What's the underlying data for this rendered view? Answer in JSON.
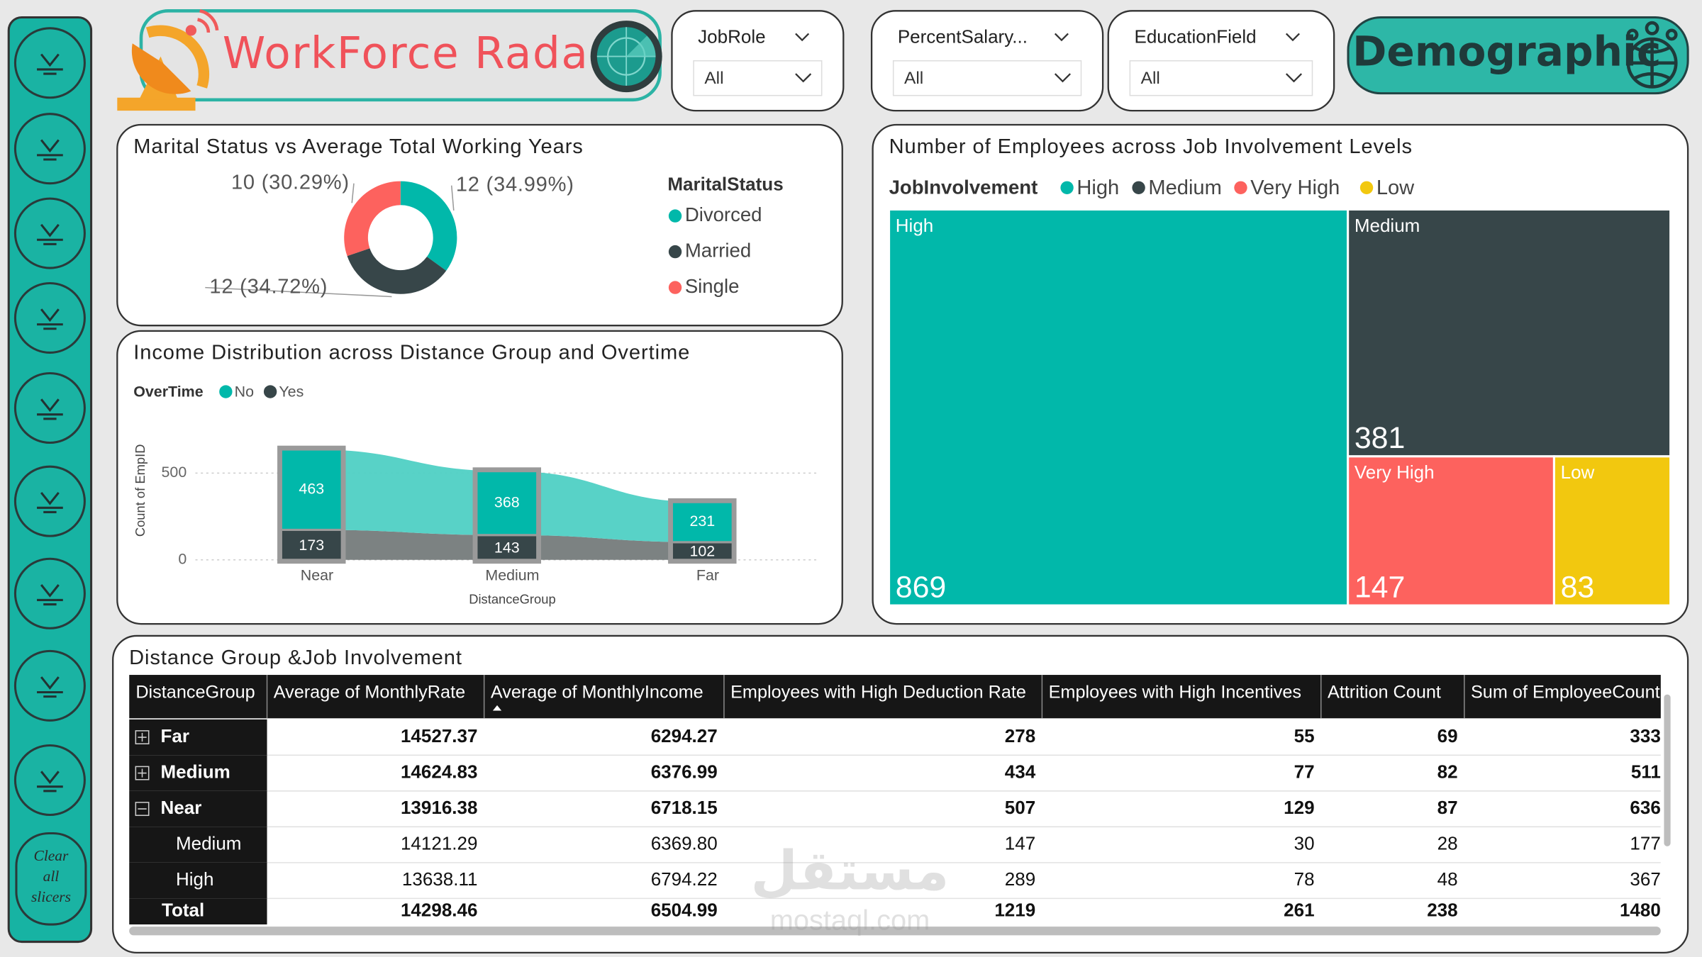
{
  "header": {
    "title": "WorkForce Radar",
    "page_title": "Demographic"
  },
  "slicers": [
    {
      "label": "JobRole",
      "value": "All"
    },
    {
      "label": "PercentSalary...",
      "value": "All"
    },
    {
      "label": "EducationField",
      "value": "All"
    }
  ],
  "sidebar": {
    "clear_button": "Clear all slicers"
  },
  "chart_data": [
    {
      "type": "donut",
      "title": "Marital Status vs Average Total Working Years",
      "legend_title": "MaritalStatus",
      "categories": [
        "Divorced",
        "Married",
        "Single"
      ],
      "values": [
        12,
        11.91,
        10.39
      ],
      "value_labels": [
        "12 (34.99%)",
        "12 (34.72%)",
        "10 (30.29%)"
      ],
      "colors": [
        "#01B8AA",
        "#374649",
        "#FD625E"
      ],
      "legend": "right"
    },
    {
      "type": "ribbon",
      "title": "Income Distribution across Distance Group and Overtime",
      "legend_title": "OverTime",
      "x_label": "DistanceGroup",
      "y_label": "Count of EmpID",
      "categories": [
        "Near",
        "Medium",
        "Far"
      ],
      "series": [
        {
          "name": "No",
          "color": "#01B8AA",
          "values": [
            463,
            368,
            231
          ]
        },
        {
          "name": "Yes",
          "color": "#374649",
          "values": [
            173,
            143,
            102
          ]
        }
      ],
      "ylim": [
        0,
        700
      ],
      "yticks": [
        0,
        500
      ],
      "grid": true,
      "legend": "top-left"
    },
    {
      "type": "treemap",
      "title": "Number of Employees across Job Involvement Levels",
      "legend_title": "JobInvolvement",
      "categories": [
        "High",
        "Medium",
        "Very High",
        "Low"
      ],
      "values": [
        869,
        381,
        147,
        83
      ],
      "colors": [
        "#01B8AA",
        "#374649",
        "#FD625E",
        "#F2C80F"
      ],
      "legend": "top-left"
    }
  ],
  "table": {
    "title": "Distance Group &Job Involvement",
    "columns": [
      "DistanceGroup",
      "Average of MonthlyRate",
      "Average of MonthlyIncome",
      "Employees with High Deduction Rate",
      "Employees with High Incentives",
      "Attrition Count",
      "Sum of EmployeeCount"
    ],
    "rows": [
      {
        "label": "Far",
        "state": "collapsed",
        "cells": [
          "14527.37",
          "6294.27",
          "278",
          "55",
          "69",
          "333"
        ]
      },
      {
        "label": "Medium",
        "state": "collapsed",
        "cells": [
          "14624.83",
          "6376.99",
          "434",
          "77",
          "82",
          "511"
        ]
      },
      {
        "label": "Near",
        "state": "expanded",
        "cells": [
          "13916.38",
          "6718.15",
          "507",
          "129",
          "87",
          "636"
        ]
      },
      {
        "label": "Medium",
        "state": "child",
        "cells": [
          "14121.29",
          "6369.80",
          "147",
          "30",
          "28",
          "177"
        ]
      },
      {
        "label": "High",
        "state": "child",
        "cells": [
          "13638.11",
          "6794.22",
          "289",
          "78",
          "48",
          "367"
        ]
      }
    ],
    "total": {
      "label": "Total",
      "cells": [
        "14298.46",
        "6504.99",
        "1219",
        "261",
        "238",
        "1480"
      ]
    }
  },
  "watermark": [
    "مستقل",
    "mostaql.com"
  ]
}
